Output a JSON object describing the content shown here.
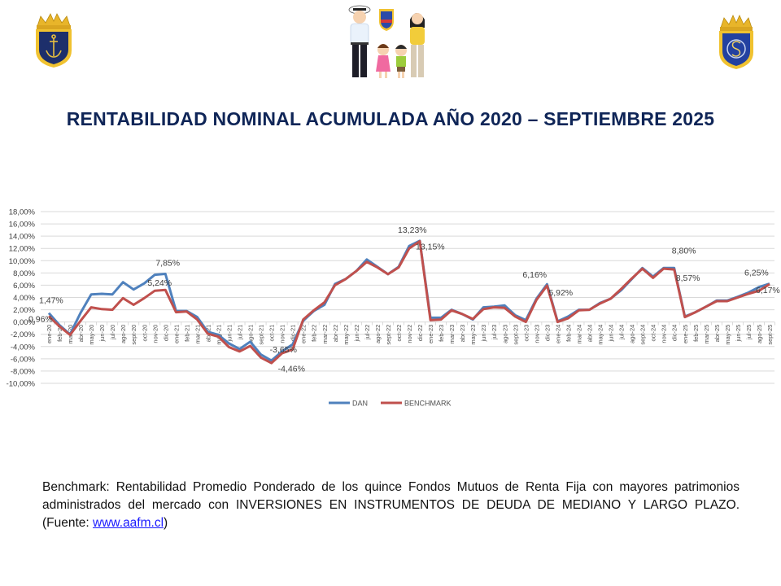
{
  "header": {
    "logo_left": "armada-de-chile-crest",
    "logo_center": "family-illustration",
    "logo_right": "navy-welfare-crest"
  },
  "title": "RENTABILIDAD NOMINAL ACUMULADA AÑO 2020 – SEPTIEMBRE 2025",
  "footnote": {
    "text": "Benchmark:  Rentabilidad Promedio Ponderado de los quince Fondos Mutuos de Renta Fija con mayores patrimonios administrados del mercado con INVERSIONES EN INSTRUMENTOS DE DEUDA DE MEDIANO Y LARGO PLAZO. (Fuente: ",
    "link": "www.aafm.cl",
    "tail": ")"
  },
  "colors": {
    "dan": "#4f81bd",
    "benchmark": "#c0504d",
    "title": "#0f2557",
    "grid": "#d9d9d9"
  },
  "chart_data": {
    "type": "line",
    "title": "",
    "xlabel": "",
    "ylabel": "",
    "ylim": [
      -10,
      18
    ],
    "yticks": [
      "18,00%",
      "16,00%",
      "14,00%",
      "12,00%",
      "10,00%",
      "8,00%",
      "6,00%",
      "4,00%",
      "2,00%",
      "0,00%",
      "-2,00%",
      "-4,00%",
      "-6,00%",
      "-8,00%",
      "-10,00%"
    ],
    "grid": true,
    "legend_position": "bottom",
    "categories": [
      "ene-20",
      "feb-20",
      "mar-20",
      "abr-20",
      "may-20",
      "jun-20",
      "jul-20",
      "ago-20",
      "sept-20",
      "oct-20",
      "nov-20",
      "dic-20",
      "ene-21",
      "feb-21",
      "mar-21",
      "abr-21",
      "may-21",
      "jun-21",
      "jul-21",
      "ago-21",
      "sept-21",
      "oct-21",
      "nov-21",
      "dic-21",
      "ene-22",
      "feb-22",
      "mar-22",
      "abr-22",
      "may-22",
      "jun-22",
      "jul-22",
      "ago-22",
      "sept-22",
      "oct-22",
      "nov-22",
      "dic-22",
      "ene-23",
      "feb-23",
      "mar-23",
      "abr-23",
      "may-23",
      "jun-23",
      "jul-23",
      "ago-23",
      "sept-23",
      "oct-23",
      "nov-23",
      "dic-23",
      "ene-24",
      "feb-24",
      "mar-24",
      "abr-24",
      "may-24",
      "jun-24",
      "jul-24",
      "ago-24",
      "sept-24",
      "oct-24",
      "nov-24",
      "dic-24",
      "ene-25",
      "feb-25",
      "mar-25",
      "abr-25",
      "may-25",
      "jun-25",
      "jul-25",
      "ago-25",
      "sept-25"
    ],
    "series": [
      {
        "name": "DAN",
        "color": "#4f81bd",
        "values": [
          1.47,
          -0.5,
          -2.0,
          1.5,
          4.5,
          4.6,
          4.5,
          6.5,
          5.3,
          6.3,
          7.7,
          7.85,
          1.8,
          1.8,
          0.8,
          -1.6,
          -2.1,
          -3.5,
          -4.4,
          -3.2,
          -5.3,
          -6.3,
          -4.8,
          -3.65,
          0.2,
          1.8,
          2.8,
          6.2,
          7.0,
          8.3,
          10.2,
          9.0,
          7.8,
          9.0,
          12.4,
          13.23,
          0.7,
          0.7,
          2.0,
          1.3,
          0.4,
          2.4,
          2.5,
          2.7,
          1.1,
          0.3,
          3.8,
          6.16,
          0.1,
          0.9,
          2.0,
          2.0,
          3.1,
          3.8,
          5.2,
          7.0,
          8.8,
          7.4,
          8.8,
          8.8,
          0.9,
          1.6,
          2.5,
          3.5,
          3.5,
          4.1,
          4.8,
          5.7,
          6.25
        ]
      },
      {
        "name": "BENCHMARK",
        "color": "#c0504d",
        "values": [
          0.96,
          -0.7,
          -2.1,
          0.2,
          2.4,
          2.1,
          2.0,
          3.9,
          2.8,
          3.9,
          5.1,
          5.24,
          1.6,
          1.7,
          0.4,
          -1.9,
          -2.4,
          -4.1,
          -4.8,
          -3.9,
          -5.8,
          -6.7,
          -5.1,
          -4.46,
          0.4,
          1.9,
          3.2,
          6.0,
          7.0,
          8.3,
          9.8,
          8.9,
          7.8,
          8.9,
          12.0,
          13.15,
          0.3,
          0.4,
          1.9,
          1.3,
          0.5,
          2.1,
          2.4,
          2.3,
          0.9,
          0.0,
          3.6,
          5.92,
          0.0,
          0.6,
          1.9,
          2.0,
          3.0,
          3.8,
          5.4,
          7.1,
          8.7,
          7.2,
          8.7,
          8.57,
          0.8,
          1.6,
          2.5,
          3.4,
          3.4,
          4.0,
          4.6,
          5.1,
          6.17
        ]
      }
    ],
    "annotations": [
      {
        "text": "1,47%",
        "x": "ene-20",
        "series": "DAN"
      },
      {
        "text": "0,96%",
        "x": "ene-20",
        "series": "BENCHMARK"
      },
      {
        "text": "7,85%",
        "x": "dic-20",
        "series": "DAN"
      },
      {
        "text": "5,24%",
        "x": "dic-20",
        "series": "BENCHMARK"
      },
      {
        "text": "-3,65%",
        "x": "dic-21",
        "series": "DAN"
      },
      {
        "text": "-4,46%",
        "x": "dic-21",
        "series": "BENCHMARK"
      },
      {
        "text": "13,23%",
        "x": "dic-22",
        "series": "DAN"
      },
      {
        "text": "13,15%",
        "x": "dic-22",
        "series": "BENCHMARK"
      },
      {
        "text": "6,16%",
        "x": "dic-23",
        "series": "DAN"
      },
      {
        "text": "5,92%",
        "x": "dic-23",
        "series": "BENCHMARK"
      },
      {
        "text": "8,80%",
        "x": "dic-24",
        "series": "DAN"
      },
      {
        "text": "8,57%",
        "x": "dic-24",
        "series": "BENCHMARK"
      },
      {
        "text": "6,25%",
        "x": "sept-25",
        "series": "DAN"
      },
      {
        "text": "6,17%",
        "x": "sept-25",
        "series": "BENCHMARK"
      }
    ],
    "legend": [
      "DAN",
      "BENCHMARK"
    ]
  }
}
